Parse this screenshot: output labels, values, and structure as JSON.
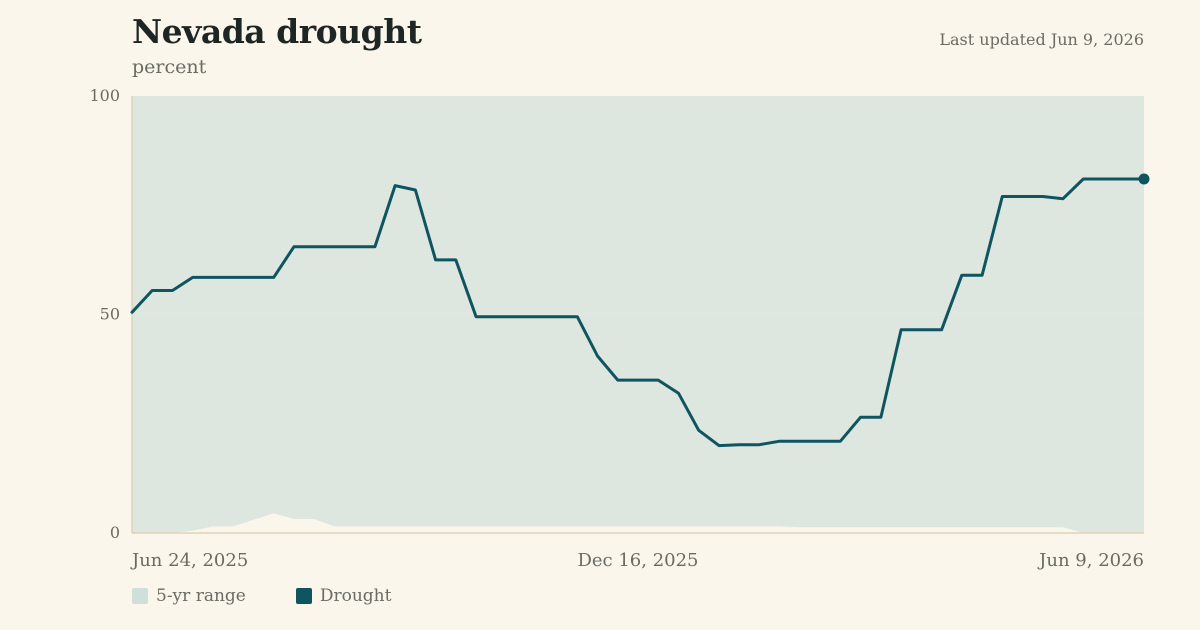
{
  "header": {
    "title": "Nevada drought",
    "subtitle": "percent",
    "updated": "Last updated Jun 9, 2026"
  },
  "legend": {
    "items": [
      {
        "label": "5-yr range",
        "color": "#cfdfd9"
      },
      {
        "label": "Drought",
        "color": "#0f5560"
      }
    ]
  },
  "colors": {
    "background": "#faf6ec",
    "range_fill": "#dde7df",
    "line": "#0f5560",
    "axis": "#d9cdb0",
    "gridline": "#e3e7dd"
  },
  "chart_data": {
    "type": "line",
    "title": "Nevada drought",
    "ylabel": "percent",
    "ylim": [
      0,
      100
    ],
    "yticks": [
      0,
      50,
      100
    ],
    "x_tick_labels": [
      "Jun 24, 2025",
      "Dec 16, 2025",
      "Jun 9, 2026"
    ],
    "x_tick_dates": [
      "2025-06-24",
      "2025-12-16",
      "2026-06-09"
    ],
    "series": [
      {
        "name": "Drought",
        "x": [
          "2025-06-24",
          "2025-07-01",
          "2025-07-08",
          "2025-07-15",
          "2025-07-22",
          "2025-07-29",
          "2025-08-05",
          "2025-08-12",
          "2025-08-19",
          "2025-08-26",
          "2025-09-02",
          "2025-09-09",
          "2025-09-16",
          "2025-09-23",
          "2025-09-30",
          "2025-10-07",
          "2025-10-14",
          "2025-10-21",
          "2025-10-28",
          "2025-11-04",
          "2025-11-11",
          "2025-11-18",
          "2025-11-25",
          "2025-12-02",
          "2025-12-09",
          "2025-12-16",
          "2025-12-23",
          "2025-12-30",
          "2026-01-06",
          "2026-01-13",
          "2026-01-20",
          "2026-01-27",
          "2026-02-03",
          "2026-02-10",
          "2026-02-17",
          "2026-02-24",
          "2026-03-03",
          "2026-03-10",
          "2026-03-17",
          "2026-03-24",
          "2026-03-31",
          "2026-04-07",
          "2026-04-14",
          "2026-04-21",
          "2026-04-28",
          "2026-05-05",
          "2026-05-12",
          "2026-05-19",
          "2026-05-26",
          "2026-06-02",
          "2026-06-09"
        ],
        "values": [
          50.5,
          55.5,
          55.5,
          58.5,
          58.5,
          58.5,
          58.5,
          58.5,
          65.5,
          65.5,
          65.5,
          65.5,
          65.5,
          79.5,
          78.5,
          62.5,
          62.5,
          49.5,
          49.5,
          49.5,
          49.5,
          49.5,
          49.5,
          40.5,
          35.0,
          35.0,
          35.0,
          32.0,
          23.5,
          20.0,
          20.2,
          20.2,
          21.0,
          21.0,
          21.0,
          21.0,
          26.5,
          26.5,
          46.5,
          46.5,
          46.5,
          59.0,
          59.0,
          77.0,
          77.0,
          77.0,
          76.5,
          81.0,
          81.0,
          81.0,
          81.0
        ]
      },
      {
        "name": "5-yr range",
        "type": "area",
        "x": [
          "2025-06-24",
          "2025-07-01",
          "2025-07-08",
          "2025-07-15",
          "2025-07-22",
          "2025-07-29",
          "2025-08-05",
          "2025-08-12",
          "2025-08-19",
          "2025-08-26",
          "2025-09-02",
          "2025-09-09",
          "2025-09-16",
          "2025-09-23",
          "2025-09-30",
          "2025-10-07",
          "2025-10-14",
          "2025-10-21",
          "2025-10-28",
          "2025-11-04",
          "2025-11-11",
          "2025-11-18",
          "2025-11-25",
          "2025-12-02",
          "2025-12-09",
          "2025-12-16",
          "2025-12-23",
          "2025-12-30",
          "2026-01-06",
          "2026-01-13",
          "2026-01-20",
          "2026-01-27",
          "2026-02-03",
          "2026-02-10",
          "2026-02-17",
          "2026-02-24",
          "2026-03-03",
          "2026-03-10",
          "2026-03-17",
          "2026-03-24",
          "2026-03-31",
          "2026-04-07",
          "2026-04-14",
          "2026-04-21",
          "2026-04-28",
          "2026-05-05",
          "2026-05-12",
          "2026-05-19",
          "2026-05-26",
          "2026-06-02",
          "2026-06-09"
        ],
        "low": [
          0,
          0,
          0,
          0.5,
          1.5,
          1.5,
          3.0,
          4.5,
          3.2,
          3.2,
          1.5,
          1.5,
          1.5,
          1.5,
          1.5,
          1.5,
          1.5,
          1.5,
          1.5,
          1.5,
          1.5,
          1.5,
          1.5,
          1.5,
          1.5,
          1.5,
          1.5,
          1.5,
          1.5,
          1.5,
          1.5,
          1.5,
          1.5,
          1.3,
          1.3,
          1.3,
          1.3,
          1.3,
          1.3,
          1.3,
          1.3,
          1.3,
          1.3,
          1.3,
          1.3,
          1.3,
          1.3,
          0,
          0,
          0,
          0
        ],
        "high": [
          100,
          100,
          100,
          100,
          100,
          100,
          100,
          100,
          100,
          100,
          100,
          100,
          100,
          100,
          100,
          100,
          100,
          100,
          100,
          100,
          100,
          100,
          100,
          100,
          100,
          100,
          100,
          100,
          100,
          100,
          100,
          100,
          100,
          100,
          100,
          100,
          100,
          100,
          100,
          100,
          100,
          100,
          100,
          100,
          100,
          100,
          100,
          100,
          100,
          100,
          100
        ]
      }
    ],
    "grid": true,
    "legend_position": "bottom-left"
  }
}
